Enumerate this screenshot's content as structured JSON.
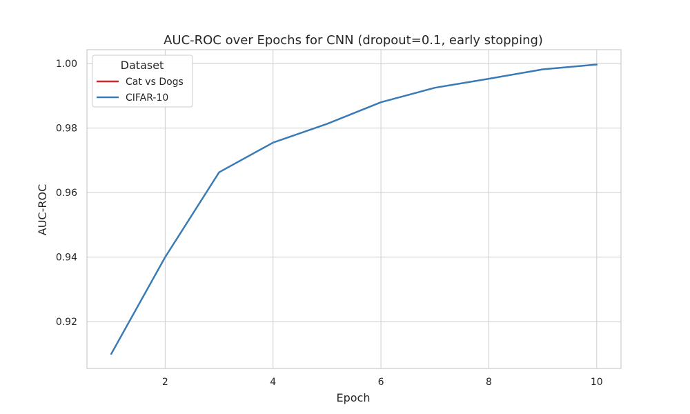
{
  "chart_data": {
    "type": "line",
    "title": "AUC-ROC over Epochs for CNN (dropout=0.1, early stopping)",
    "xlabel": "Epoch",
    "ylabel": "AUC-ROC",
    "xlim": [
      0.55,
      10.45
    ],
    "ylim": [
      0.9055,
      1.0043
    ],
    "xticks": [
      2,
      4,
      6,
      8,
      10
    ],
    "xtick_labels": [
      "2",
      "4",
      "6",
      "8",
      "10"
    ],
    "yticks": [
      0.92,
      0.94,
      0.96,
      0.98,
      1.0
    ],
    "ytick_labels": [
      "0.92",
      "0.94",
      "0.96",
      "0.98",
      "1.00"
    ],
    "grid": true,
    "legend": {
      "title": "Dataset",
      "placement": "top-left"
    },
    "series": [
      {
        "name": "Cat vs Dogs",
        "color": "#d62728",
        "x": [],
        "values": []
      },
      {
        "name": "CIFAR-10",
        "color": "#3a7bb5",
        "x": [
          1,
          2,
          3,
          4,
          5,
          6,
          7,
          8,
          9,
          10
        ],
        "values": [
          0.91,
          0.94,
          0.9663,
          0.9755,
          0.9813,
          0.988,
          0.9925,
          0.9953,
          0.9982,
          0.9997
        ]
      }
    ]
  }
}
